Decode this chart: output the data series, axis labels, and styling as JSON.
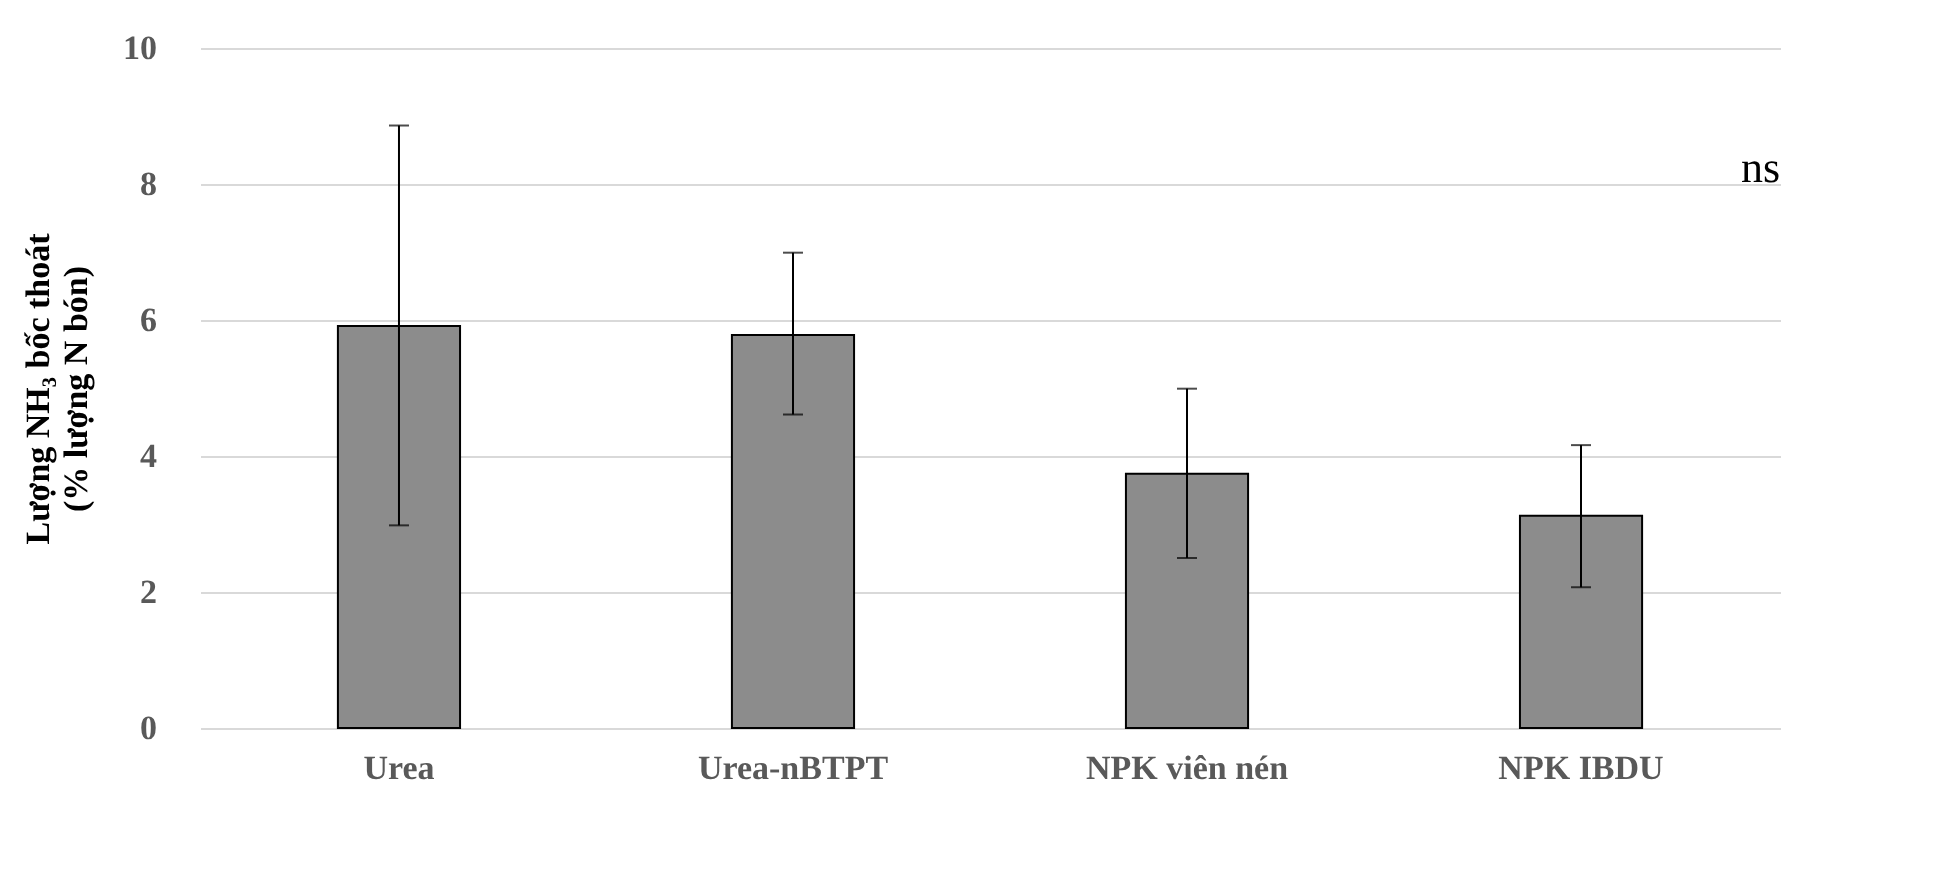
{
  "chart_data": {
    "type": "bar",
    "categories": [
      "Urea",
      "Urea-nBTPT",
      "NPK viên nén",
      "NPK IBDU"
    ],
    "values": [
      5.91,
      5.78,
      3.74,
      3.12
    ],
    "errors": [
      [
        2.98,
        8.86
      ],
      [
        4.61,
        6.99
      ],
      [
        2.5,
        4.99
      ],
      [
        2.07,
        4.16
      ]
    ],
    "color": "#8c8c8c",
    "ylabel": "Lượng NH₃ bốc thoát\n(% lượng N bón)",
    "ylim": [
      0,
      10
    ],
    "yticks": [
      0,
      2,
      4,
      6,
      8,
      10
    ],
    "grid": "y",
    "annotations": [
      "ns"
    ]
  }
}
